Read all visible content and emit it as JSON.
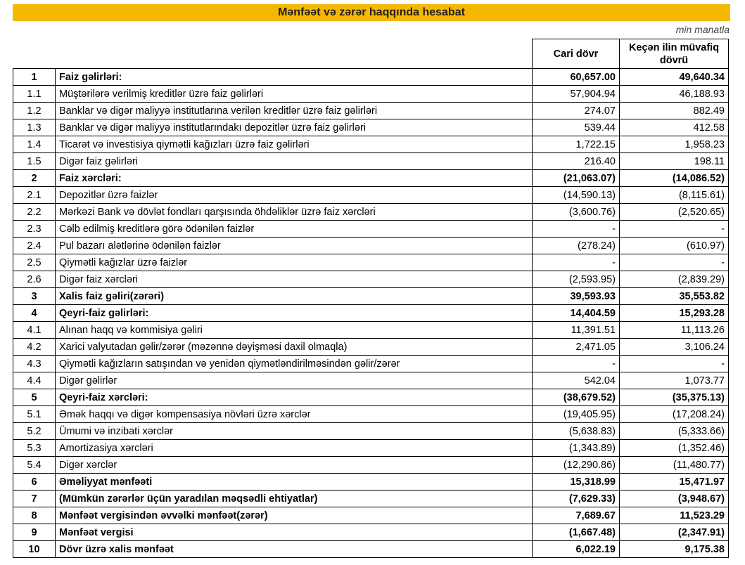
{
  "header": {
    "title": "Mənfəət və zərər haqqında hesabat",
    "unit": "min manatla"
  },
  "table": {
    "columns": [
      "Cari dövr",
      "Keçən ilin müvafiq dövrü"
    ],
    "rows": [
      [
        "1",
        "Faiz gəlirləri:",
        "60,657.00",
        "49,640.34"
      ],
      [
        "1.1",
        "Müştərilərə verilmiş kreditlər üzrə faiz gəlirləri",
        "57,904.94",
        "46,188.93"
      ],
      [
        "1.2",
        "Banklar və digər maliyyə institutlarına verilən kreditlər üzrə faiz gəlirləri",
        "274.07",
        "882.49"
      ],
      [
        "1.3",
        "Banklar və digər maliyyə institutlarındakı depozitlər üzrə faiz gəlirləri",
        "539.44",
        "412.58"
      ],
      [
        "1.4",
        "Ticarət və investisiya qiymətli kağızları üzrə faiz gəlirləri",
        "1,722.15",
        "1,958.23"
      ],
      [
        "1.5",
        "Digər faiz gəlirləri",
        "216.40",
        "198.11"
      ],
      [
        "2",
        "Faiz xərcləri:",
        "(21,063.07)",
        "(14,086.52)"
      ],
      [
        "2.1",
        "Depozitlər üzrə faizlər",
        "(14,590.13)",
        "(8,115.61)"
      ],
      [
        "2.2",
        "Mərkəzi Bank və dövlət fondları qarşısında öhdəliklər üzrə faiz xərcləri",
        "(3,600.76)",
        "(2,520.65)"
      ],
      [
        "2.3",
        "Cəlb edilmiş kreditlərə görə ödənilən faizlər",
        "-",
        "-"
      ],
      [
        "2.4",
        "Pul bazarı alətlərinə ödənilən faizlər",
        "(278.24)",
        "(610.97)"
      ],
      [
        "2.5",
        "Qiymətli kağızlar üzrə faizlər",
        "-",
        "-"
      ],
      [
        "2.6",
        "Digər faiz xərcləri",
        "(2,593.95)",
        "(2,839.29)"
      ],
      [
        "3",
        "Xalis faiz gəliri(zərəri)",
        "39,593.93",
        "35,553.82"
      ],
      [
        "4",
        "Qeyri-faiz gəlirləri:",
        "14,404.59",
        "15,293.28"
      ],
      [
        "4.1",
        "Alınan haqq və kommisiya gəliri",
        "11,391.51",
        "11,113.26"
      ],
      [
        "4.2",
        "Xarici valyutadan gəlir/zərər (məzənnə dəyişməsi daxil olmaqla)",
        "2,471.05",
        "3,106.24"
      ],
      [
        "4.3",
        "Qiymətli kağızların satışından və yenidən qiymətləndirilməsindən gəlir/zərər",
        "-",
        "-"
      ],
      [
        "4.4",
        "Digər gəlirlər",
        "542.04",
        "1,073.77"
      ],
      [
        "5",
        "Qeyri-faiz xərcləri:",
        "(38,679.52)",
        "(35,375.13)"
      ],
      [
        "5.1",
        "Əmək haqqı və digər kompensasiya növləri üzrə xərclər",
        "(19,405.95)",
        "(17,208.24)"
      ],
      [
        "5.2",
        "Ümumi və inzibati xərclər",
        "(5,638.83)",
        "(5,333.66)"
      ],
      [
        "5.3",
        "Amortizasiya xərcləri",
        "(1,343.89)",
        "(1,352.46)"
      ],
      [
        "5.4",
        "Digər xərclər",
        "(12,290.86)",
        "(11,480.77)"
      ],
      [
        "6",
        "Əməliyyat mənfəəti",
        "15,318.99",
        "15,471.97"
      ],
      [
        "7",
        "(Mümkün zərərlər üçün yaradılan məqsədli ehtiyatlar)",
        "(7,629.33)",
        "(3,948.67)"
      ],
      [
        "8",
        "Mənfəət vergisindən əvvəlki mənfəət(zərər)",
        "7,689.67",
        "11,523.29"
      ],
      [
        "9",
        "Mənfəət vergisi",
        "(1,667.48)",
        "(2,347.91)"
      ],
      [
        "10",
        "Dövr üzrə xalis mənfəət",
        "6,022.19",
        "9,175.38"
      ]
    ]
  }
}
